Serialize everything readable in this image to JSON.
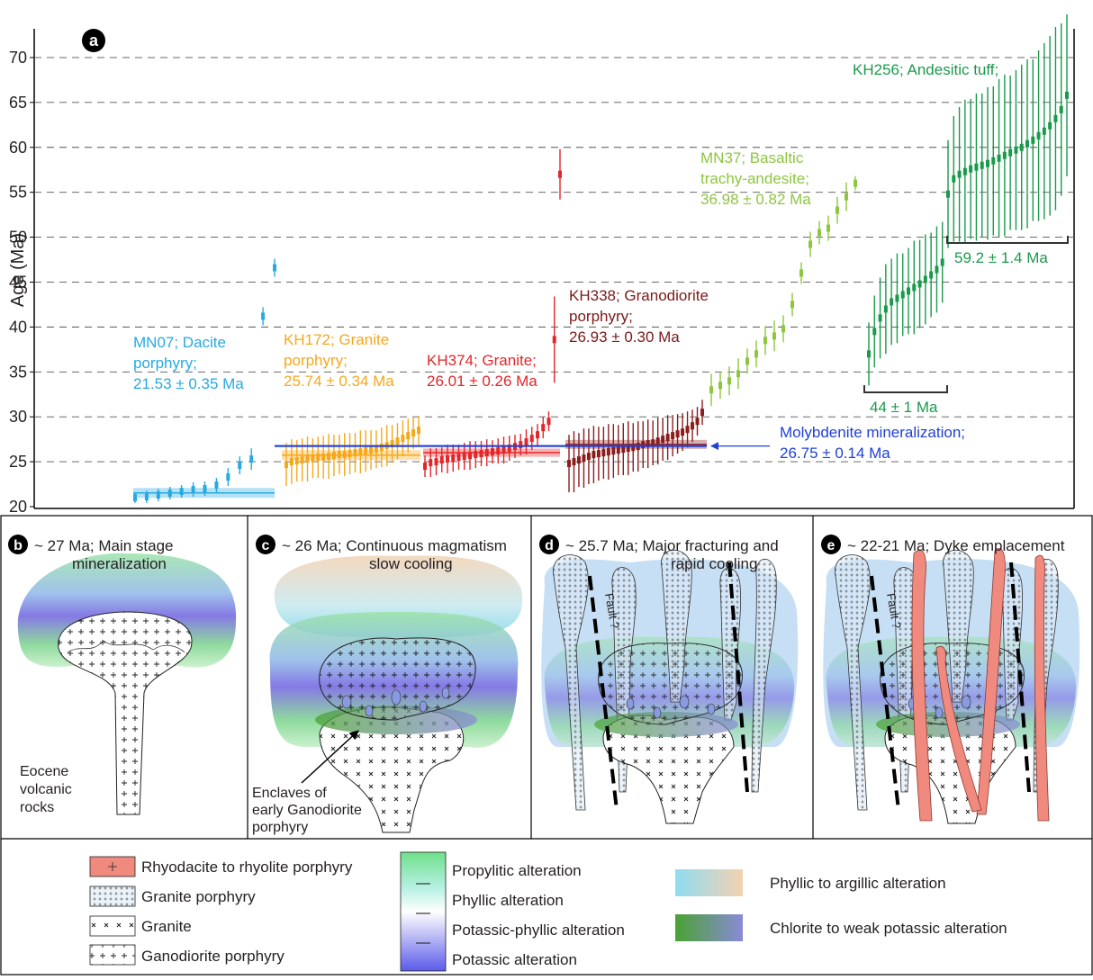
{
  "chart_data": {
    "type": "errorbar",
    "panel_label": "a",
    "y_label": "Age (Ma)",
    "ylim": [
      20,
      73.2
    ],
    "yticks": [
      20,
      25,
      30,
      35,
      40,
      45,
      50,
      55,
      60,
      65,
      70
    ],
    "grid": true,
    "series": [
      {
        "name_lines": [
          "MN07; Dacite",
          "porphyry;"
        ],
        "age_label": "21.53 ± 0.35 Ma",
        "mean": 21.53,
        "mean_error": 0.35,
        "color": "#27aae1",
        "values": [
          21,
          21.1,
          21.3,
          21.5,
          21.7,
          21.9,
          22,
          22.4,
          23.3,
          24.6,
          25.3,
          41.2,
          46.6
        ],
        "errors": [
          0.6,
          0.7,
          0.7,
          0.7,
          0.7,
          0.8,
          0.8,
          0.8,
          1,
          1,
          1.2,
          1,
          1
        ]
      },
      {
        "name_lines": [
          "KH172; Granite",
          "porphyry;"
        ],
        "age_label": "25.74 ± 0.34 Ma",
        "mean": 25.74,
        "mean_error": 0.34,
        "color": "#f5a81c",
        "values": [
          24.7,
          25,
          25.1,
          25.2,
          25.3,
          25.4,
          25.5,
          25.5,
          25.6,
          25.7,
          25.8,
          25.8,
          25.9,
          26,
          26.1,
          26.2,
          26.3,
          26.4,
          26.6,
          26.8,
          27,
          27.3,
          27.6,
          27.9,
          28.2,
          28.5
        ],
        "errors": [
          2.4,
          2.5,
          2.3,
          2.4,
          2.5,
          2.2,
          2.3,
          2.4,
          2.5,
          2.3,
          2.2,
          2.4,
          2.3,
          2.2,
          2.4,
          2.3,
          2.2,
          2.1,
          2.2,
          2.3,
          2.1,
          2,
          2,
          1.9,
          1.8,
          1.6
        ]
      },
      {
        "name_lines": [
          "KH374; Granite;"
        ],
        "age_label": "26.01 ± 0.26 Ma",
        "mean": 26.01,
        "mean_error": 0.26,
        "color": "#e3262a",
        "values": [
          24.5,
          24.9,
          25,
          25.2,
          25.3,
          25.4,
          25.5,
          25.6,
          25.7,
          25.8,
          25.9,
          26,
          26.1,
          26.2,
          26.3,
          26.5,
          26.7,
          26.9,
          27.2,
          27.6,
          28,
          28.8,
          29.5,
          38.6,
          57
        ],
        "errors": [
          1.2,
          1.6,
          1.5,
          1.4,
          1.6,
          1.5,
          1.4,
          1.5,
          1.6,
          1.5,
          1.4,
          1.5,
          1.3,
          1.4,
          1.5,
          1.4,
          1.3,
          1.2,
          1.4,
          1.3,
          1.2,
          1.2,
          1.1,
          4.8,
          2.8
        ]
      },
      {
        "name_lines": [
          "KH338; Granodiorite",
          "porphyry;"
        ],
        "age_label": "26.93 ± 0.30 Ma",
        "mean": 26.93,
        "mean_error": 0.3,
        "color": "#8c1d1d",
        "values": [
          24.8,
          25,
          25.2,
          25.4,
          25.6,
          25.8,
          25.9,
          26,
          26.1,
          26.2,
          26.3,
          26.4,
          26.5,
          26.6,
          26.7,
          26.9,
          27,
          27.1,
          27.3,
          27.5,
          27.7,
          27.9,
          28.1,
          28.3,
          28.6,
          29,
          29.5,
          30.5
        ],
        "errors": [
          3.2,
          3.4,
          3,
          3.3,
          3.1,
          3.2,
          3,
          2.9,
          3.1,
          3,
          2.8,
          2.9,
          3,
          2.7,
          2.8,
          2.6,
          2.7,
          2.5,
          2.6,
          2.4,
          2.5,
          2.3,
          2.2,
          2.1,
          2,
          1.8,
          1.6,
          1.4
        ]
      },
      {
        "name_lines": [
          "MN37; Basaltic",
          "trachy-andesite;"
        ],
        "age_label": "36.98 ± 0.82 Ma",
        "color": "#8dc63f",
        "values": [
          33,
          33.5,
          34,
          34.8,
          36.2,
          37,
          38.5,
          39,
          39.8,
          42.5,
          46,
          49.2,
          50.5,
          51,
          53,
          54.5,
          56
        ],
        "errors": [
          1.8,
          1.5,
          1.6,
          1.7,
          1.4,
          1.5,
          1.6,
          1.7,
          1.5,
          1.3,
          1.2,
          1.4,
          1.3,
          1.4,
          1.5,
          1.6,
          0.8
        ]
      },
      {
        "name_lines": [
          "KH256; Andesitic tuff;"
        ],
        "color": "#1a9a4b",
        "values": [
          37,
          39.5,
          41,
          42,
          42.8,
          43.2,
          43.6,
          44,
          44.4,
          44.8,
          45.3,
          45.8,
          46.4,
          47.2,
          54.8,
          56.5,
          57,
          57.3,
          57.6,
          57.8,
          58,
          58.2,
          58.5,
          58.8,
          59.1,
          59.4,
          59.7,
          60,
          60.4,
          60.8,
          61.3,
          61.8,
          62.4,
          63.2,
          64.2,
          65.8
        ],
        "errors": [
          3.5,
          4,
          4.5,
          5,
          4.8,
          5,
          4.6,
          4.8,
          5.2,
          4.9,
          5,
          4.7,
          4.8,
          4.5,
          6,
          7,
          7.5,
          8,
          7.8,
          8.2,
          8,
          8.5,
          8.3,
          8.8,
          9,
          8.6,
          8.9,
          9.2,
          9.4,
          9,
          9.5,
          9.8,
          10,
          10.2,
          9.6,
          9
        ],
        "subgroups": [
          {
            "label": "44 ± 1 Ma"
          },
          {
            "label": "59.2 ± 1.4 Ma"
          }
        ]
      }
    ],
    "annotation": {
      "lines": [
        "Molybdenite mineralization;",
        "26.75 ± 0.14 Ma"
      ],
      "value": 26.75,
      "error": 0.14,
      "color": "#1f3fd6"
    }
  },
  "panels": [
    {
      "label": "b",
      "title_lines": [
        "~ 27 Ma; Main stage",
        "mineralization"
      ],
      "notes": [
        "Eocene",
        "volcanic",
        "rocks"
      ]
    },
    {
      "label": "c",
      "title_lines": [
        "~ 26 Ma; Continuous magmatism",
        "slow cooling"
      ],
      "notes": [
        "Enclaves of",
        "early Ganodiorite",
        "porphyry"
      ]
    },
    {
      "label": "d",
      "title_lines": [
        "~ 25.7 Ma;  Major fracturing and",
        "rapid cooling"
      ],
      "notes": [
        "Fault ?"
      ]
    },
    {
      "label": "e",
      "title_lines": [
        "~ 22-21 Ma; Dyke emplacement"
      ],
      "notes": [
        "Fault ?"
      ]
    }
  ],
  "legend": {
    "rocks": [
      "Rhyodacite to rhyolite porphyry",
      "Granite porphyry",
      "Granite",
      "Ganodiorite porphyry"
    ],
    "alteration_scale": [
      "Propylitic alteration",
      "Phyllic alteration",
      "Potassic-phyllic alteration",
      "Potassic alteration"
    ],
    "gradients": [
      "Phyllic to argillic alteration",
      "Chlorite to weak potassic alteration"
    ]
  }
}
